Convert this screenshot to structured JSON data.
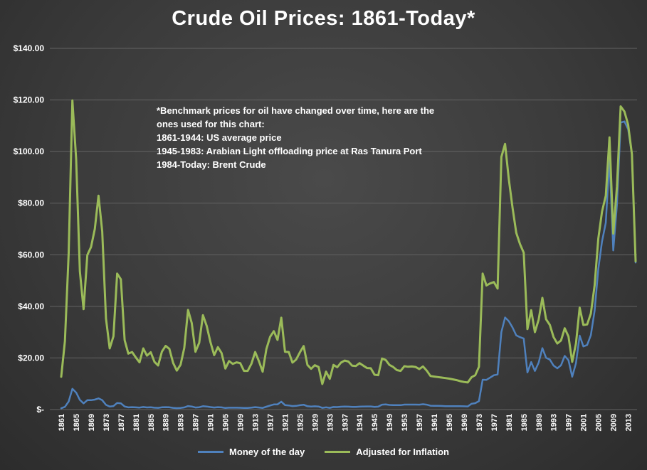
{
  "title": "Crude Oil Prices: 1861-Today*",
  "annotation": "*Benchmark prices for oil have changed over time, here are the\nones used for this chart:\n1861-1944:  US average price\n1945-1983:  Arabian Light offloading price at Ras Tanura Port\n1984-Today: Brent Crude",
  "legend": {
    "money_label": "Money of the day",
    "inflation_label": "Adjusted for Inflation"
  },
  "colors": {
    "money": "#4f81bd",
    "inflation": "#9bbb59",
    "text": "#ffffff",
    "grid": "#636363",
    "background_center": "#4a4a4a",
    "background_edge": "#2c2c2c"
  },
  "chart_data": {
    "type": "line",
    "title": "Crude Oil Prices: 1861-Today*",
    "ylim": [
      0,
      140
    ],
    "y_tick_step": 20,
    "y_tick_labels": [
      "$-",
      "$20.00",
      "$40.00",
      "$60.00",
      "$80.00",
      "$100.00",
      "$120.00",
      "$140.00"
    ],
    "x_tick_step": 4,
    "grid": true,
    "legend_position": "bottom",
    "x": [
      1861,
      1862,
      1863,
      1864,
      1865,
      1866,
      1867,
      1868,
      1869,
      1870,
      1871,
      1872,
      1873,
      1874,
      1875,
      1876,
      1877,
      1878,
      1879,
      1880,
      1881,
      1882,
      1883,
      1884,
      1885,
      1886,
      1887,
      1888,
      1889,
      1890,
      1891,
      1892,
      1893,
      1894,
      1895,
      1896,
      1897,
      1898,
      1899,
      1900,
      1901,
      1902,
      1903,
      1904,
      1905,
      1906,
      1907,
      1908,
      1909,
      1910,
      1911,
      1912,
      1913,
      1914,
      1915,
      1916,
      1917,
      1918,
      1919,
      1920,
      1921,
      1922,
      1923,
      1924,
      1925,
      1926,
      1927,
      1928,
      1929,
      1930,
      1931,
      1932,
      1933,
      1934,
      1935,
      1936,
      1937,
      1938,
      1939,
      1940,
      1941,
      1942,
      1943,
      1944,
      1945,
      1946,
      1947,
      1948,
      1949,
      1950,
      1951,
      1952,
      1953,
      1954,
      1955,
      1956,
      1957,
      1958,
      1959,
      1960,
      1961,
      1962,
      1963,
      1964,
      1965,
      1966,
      1967,
      1968,
      1969,
      1970,
      1971,
      1972,
      1973,
      1974,
      1975,
      1976,
      1977,
      1978,
      1979,
      1980,
      1981,
      1982,
      1983,
      1984,
      1985,
      1986,
      1987,
      1988,
      1989,
      1990,
      1991,
      1992,
      1993,
      1994,
      1995,
      1996,
      1997,
      1998,
      1999,
      2000,
      2001,
      2002,
      2003,
      2004,
      2005,
      2006,
      2007,
      2008,
      2009,
      2010,
      2011,
      2012,
      2013,
      2014,
      2015
    ],
    "series": [
      {
        "name": "Money of the day",
        "color": "#4f81bd",
        "values": [
          0.49,
          1.05,
          3.15,
          8.06,
          6.59,
          3.74,
          2.41,
          3.63,
          3.64,
          3.86,
          4.34,
          3.64,
          1.83,
          1.17,
          1.35,
          2.56,
          2.42,
          1.19,
          0.86,
          0.95,
          0.86,
          0.78,
          1.0,
          0.84,
          0.88,
          0.71,
          0.67,
          0.88,
          0.94,
          0.87,
          0.67,
          0.56,
          0.64,
          0.84,
          1.36,
          1.18,
          0.79,
          0.91,
          1.29,
          1.19,
          0.96,
          0.8,
          0.94,
          0.86,
          0.62,
          0.73,
          0.72,
          0.72,
          0.7,
          0.61,
          0.61,
          0.74,
          0.95,
          0.81,
          0.64,
          1.1,
          1.56,
          1.98,
          2.01,
          3.07,
          1.73,
          1.61,
          1.34,
          1.43,
          1.68,
          1.88,
          1.3,
          1.17,
          1.27,
          1.19,
          0.65,
          0.87,
          0.67,
          1.0,
          0.97,
          1.09,
          1.18,
          1.13,
          1.02,
          1.02,
          1.14,
          1.19,
          1.2,
          1.21,
          1.05,
          1.12,
          1.9,
          1.99,
          1.78,
          1.71,
          1.71,
          1.71,
          1.93,
          1.93,
          1.93,
          1.93,
          1.9,
          2.08,
          1.9,
          1.5,
          1.45,
          1.42,
          1.4,
          1.33,
          1.33,
          1.33,
          1.33,
          1.3,
          1.28,
          1.21,
          2.24,
          2.48,
          3.29,
          11.58,
          11.53,
          12.38,
          13.3,
          13.6,
          30.03,
          35.69,
          34.28,
          31.8,
          28.78,
          28.06,
          27.53,
          14.38,
          18.42,
          14.96,
          18.2,
          23.81,
          20.05,
          19.37,
          17.07,
          15.98,
          17.18,
          20.8,
          19.11,
          12.72,
          17.97,
          28.66,
          24.46,
          25.03,
          28.83,
          38.27,
          54.52,
          65.14,
          72.39,
          97.26,
          61.67,
          79.5,
          111.26,
          111.67,
          108.66,
          98.95,
          57.0
        ]
      },
      {
        "name": "Adjusted for Inflation",
        "color": "#9bbb59",
        "values": [
          12.7,
          26.5,
          60.7,
          119.8,
          97.0,
          53.6,
          38.9,
          59.9,
          63.0,
          70.0,
          82.9,
          69.1,
          35.3,
          23.7,
          28.4,
          52.7,
          50.5,
          26.9,
          21.7,
          22.3,
          20.2,
          18.3,
          23.7,
          20.9,
          22.2,
          18.5,
          17.1,
          22.5,
          24.7,
          23.5,
          18.1,
          15.1,
          17.4,
          23.9,
          38.6,
          33.5,
          22.4,
          25.9,
          36.6,
          32.4,
          26.2,
          21.1,
          24.2,
          21.9,
          15.9,
          18.8,
          17.7,
          18.3,
          18.0,
          15.0,
          15.0,
          17.8,
          22.3,
          18.8,
          14.7,
          23.4,
          28.2,
          30.4,
          27.0,
          35.6,
          22.4,
          22.3,
          18.2,
          19.4,
          22.2,
          24.6,
          17.3,
          15.8,
          17.2,
          16.5,
          9.9,
          14.7,
          11.9,
          17.3,
          16.4,
          18.2,
          19.0,
          18.6,
          17.0,
          16.9,
          18.0,
          17.0,
          16.1,
          16.0,
          13.5,
          13.3,
          19.8,
          19.2,
          17.3,
          16.5,
          15.3,
          15.0,
          16.8,
          16.6,
          16.7,
          16.5,
          15.7,
          16.7,
          15.1,
          13.0,
          12.8,
          12.6,
          12.4,
          12.2,
          12.0,
          11.7,
          11.4,
          11.0,
          10.7,
          10.5,
          12.5,
          13.3,
          16.6,
          52.7,
          48.1,
          48.9,
          49.4,
          46.9,
          97.9,
          103.0,
          89.4,
          78.2,
          68.5,
          64.1,
          60.8,
          31.2,
          38.5,
          30.0,
          34.9,
          43.3,
          35.0,
          32.8,
          28.1,
          25.6,
          26.8,
          31.5,
          28.3,
          18.5,
          25.6,
          39.5,
          32.8,
          33.0,
          37.2,
          48.1,
          66.3,
          76.7,
          82.9,
          105.5,
          68.2,
          86.5,
          117.5,
          115.5,
          110.4,
          99.0,
          57.5
        ]
      }
    ]
  }
}
